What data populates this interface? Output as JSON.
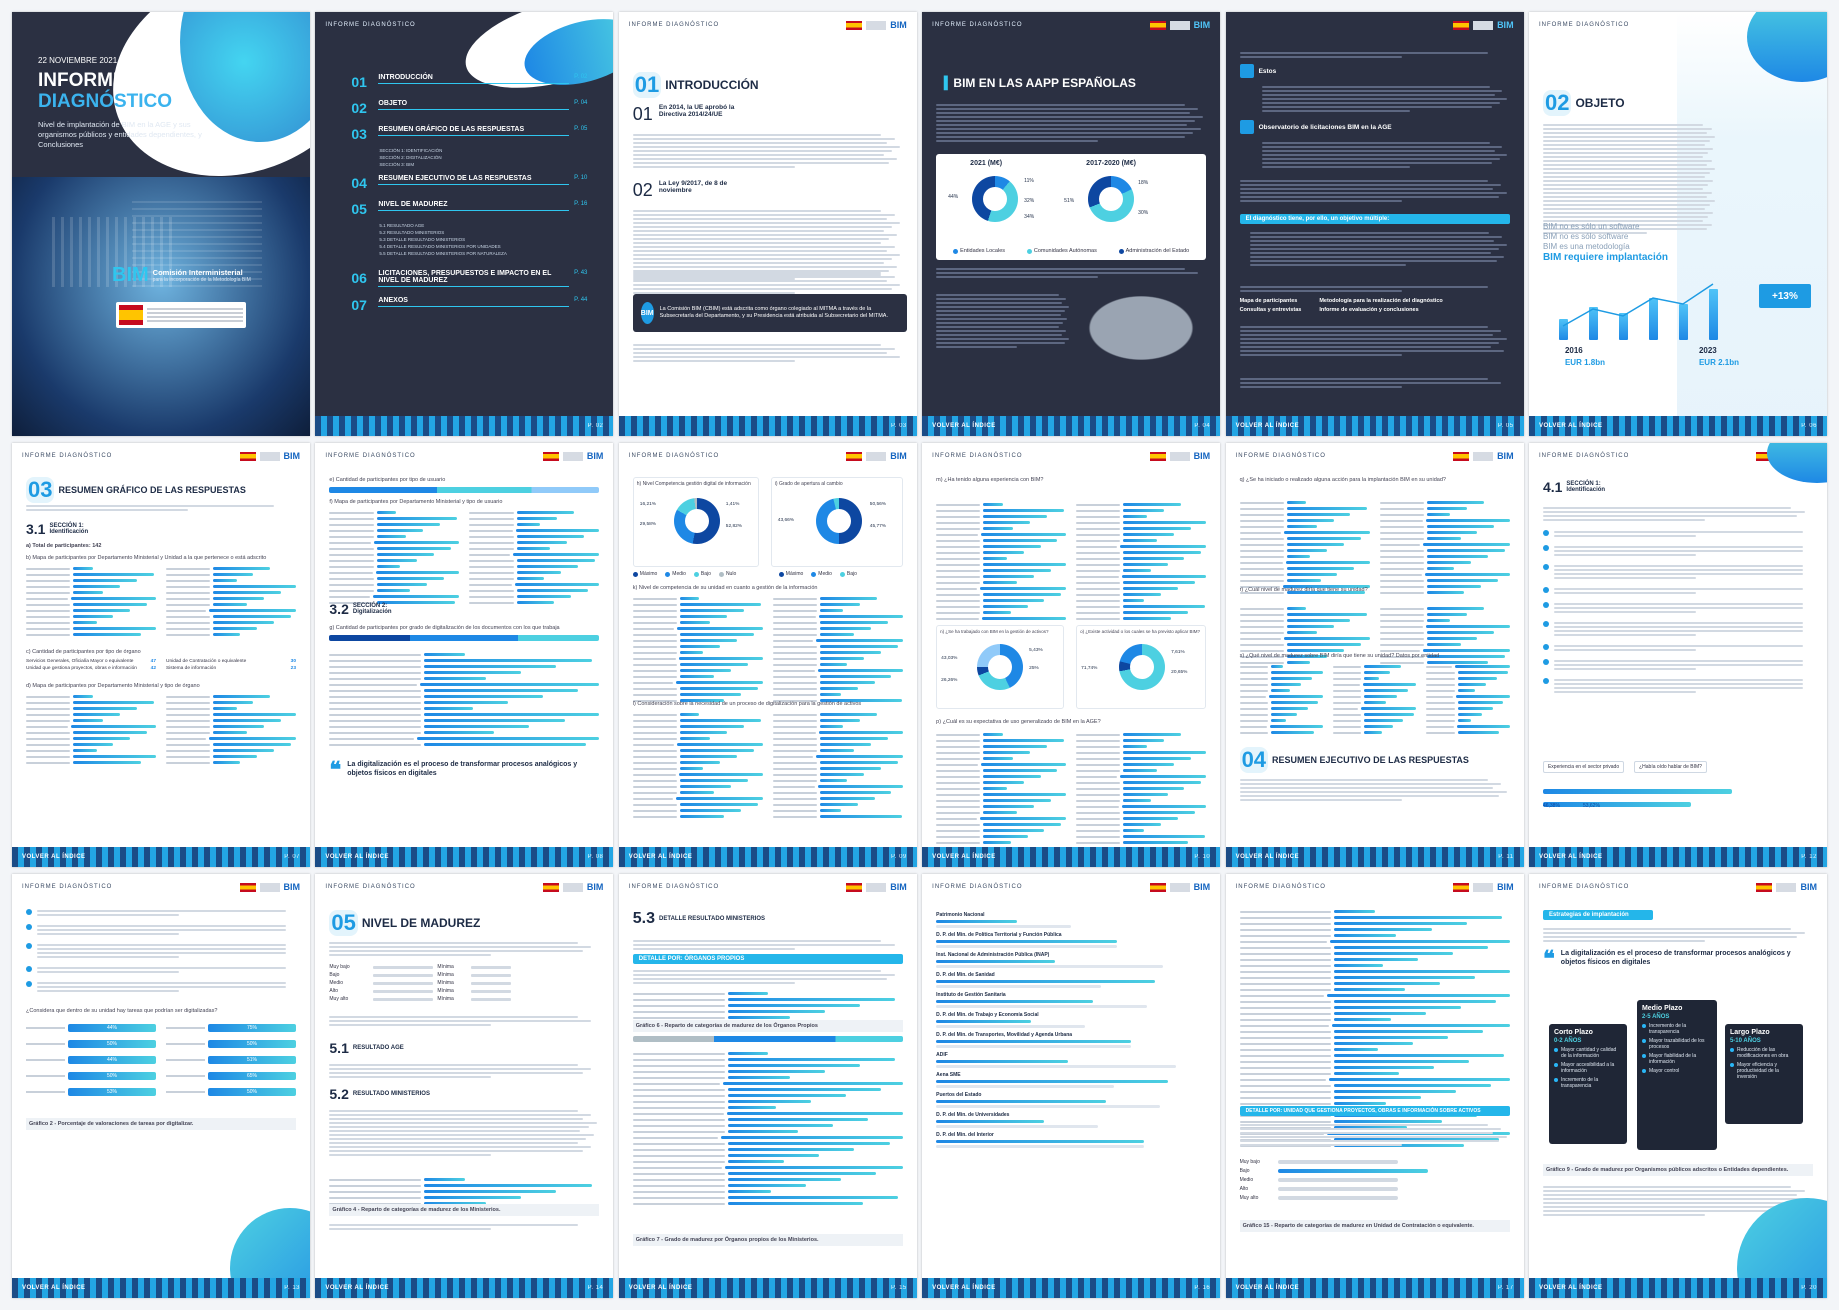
{
  "cover": {
    "date": "22 NOVIEMBRE 2021",
    "title_line1": "INFORME",
    "title_line2": "DIAGNÓSTICO",
    "subtitle": "Nivel de implantación de BIM en la AGE y sus organismos públicos y entidades dependientes, y Conclusiones",
    "brand": "BIM",
    "brand_sub1": "Comisión Interministerial",
    "brand_sub2": "para la incorporación de la Metodología BIM"
  },
  "header": {
    "label": "INFORME DIAGNÓSTICO",
    "logo": "BIM"
  },
  "footer": {
    "back": "VOLVER AL ÍNDICE"
  },
  "toc": {
    "items": [
      {
        "num": "01",
        "title": "INTRODUCCIÓN",
        "page": "P. 02"
      },
      {
        "num": "02",
        "title": "OBJETO",
        "page": "P. 04"
      },
      {
        "num": "03",
        "title": "RESUMEN GRÁFICO DE LAS RESPUESTAS",
        "page": "P. 05"
      },
      {
        "num": "04",
        "title": "RESUMEN EJECUTIVO DE LAS RESPUESTAS",
        "page": "P. 10"
      },
      {
        "num": "05",
        "title": "NIVEL DE MADUREZ",
        "page": "P. 16"
      },
      {
        "num": "06",
        "title": "LICITACIONES, PRESUPUESTOS E IMPACTO EN EL NIVEL DE MADUREZ",
        "page": "P. 43"
      },
      {
        "num": "07",
        "title": "ANEXOS",
        "page": "P. 44"
      }
    ],
    "sub3": [
      "SECCIÓN 1: IDENTIFICACIÓN",
      "SECCIÓN 2: DIGITALIZACIÓN",
      "SECCIÓN 3: BIM"
    ],
    "sub5": [
      "5.1 RESULTADO AGE",
      "5.2 RESULTADO MINISTERIOS",
      "5.3 DETALLE RESULTADO MINISTERIOS",
      "5.4 DETALLE RESULTADO MINISTERIOS POR UNIDADES",
      "5.5 DETALLE RESULTADO MINISTERIOS POR NATURALEZA"
    ]
  },
  "intro": {
    "num": "01",
    "title": "INTRODUCCIÓN",
    "p1_num": "01",
    "p1_head": "En 2014, la UE aprobó la Directiva 2014/24/UE",
    "p2_num": "02",
    "p2_head": "La Ley 9/2017, de 8 de noviembre",
    "callout": "La Comisión BIM (CBIM) está adscrita como órgano colegiado al MITMA a través de la Subsecretaría del Departamento, y su Presidencia está atribuida al Subsecretario del MITMA."
  },
  "aapp": {
    "title": "BIM EN LAS AAPP ESPAÑOLAS",
    "chart1": "2021 (M€)",
    "chart2": "2017-2020 (M€)",
    "c1_vals": [
      "11%",
      "44%",
      "32%",
      "34%"
    ],
    "c2_vals": [
      "18%",
      "51%",
      "30%"
    ],
    "legend": [
      "Entidades Locales",
      "Comunidades Autónomas",
      "Administración del Estado"
    ],
    "colors": [
      "#1e88e5",
      "#4dd0e1",
      "#0d47a1"
    ]
  },
  "cbim": {
    "h1": "Estos",
    "h2": "Observatorio de licitaciones BIM en la AGE",
    "band": "El diagnóstico tiene, por ello, un objetivo múltiple:",
    "list1": [
      "Mapa de participantes",
      "Consultas y entrevistas"
    ],
    "list2": [
      "Metodología para la realización del diagnóstico",
      "Informe de evaluación y conclusiones"
    ]
  },
  "objeto": {
    "num": "02",
    "title": "OBJETO",
    "tag1": "BIM no es sólo un software",
    "tag2": "BIM no es sólo software",
    "tag3": "BIM es una metodología",
    "tag4": "BIM requiere implantación",
    "growth": "+13%",
    "years": [
      "2016",
      "2023"
    ],
    "amounts": [
      "EUR 1.8bn",
      "EUR 2.1bn"
    ],
    "bar_levels": [
      0.35,
      0.55,
      0.45,
      0.7,
      0.6,
      0.85
    ]
  },
  "resumen": {
    "num": "03",
    "title": "RESUMEN GRÁFICO DE LAS RESPUESTAS",
    "sec_num": "3.1",
    "sec_title": "SECCIÓN 1: Identificación",
    "total": "a) Total de participantes: 142",
    "b": "b) Mapa de participantes por Departamento Ministerial y Unidad a la que pertenece o está adscrito",
    "c": "c) Cantidad de participantes por tipo de órgano",
    "d": "d) Mapa de participantes por Departamento Ministerial y tipo de órgano",
    "c_rows": [
      [
        "Servicios Generales, Oficialía Mayor o equivalente",
        "47"
      ],
      [
        "Unidad de Contratación o equivalente",
        "30"
      ],
      [
        "Unidad que gestiona proyectos, obras e información",
        "42"
      ],
      [
        "Sistema de información",
        "23"
      ]
    ]
  },
  "p07": {
    "e": "e) Cantidad de participantes por tipo de usuario",
    "f": "f) Mapa de participantes por Departamento Ministerial y tipo de usuario",
    "sec_num": "3.2",
    "sec_title": "SECCIÓN 2: Digitalización",
    "g": "g) Cantidad de participantes por grado de digitalización de los documentos con los que trabaja",
    "quote": "La digitalización es el proceso de transformar procesos analógicos y objetos físicos en digitales"
  },
  "p08": {
    "h": "h) Nivel Competencia gestión digital de información",
    "i": "i) Grado de apertura al cambio",
    "h_vals": [
      "16,21%",
      "29,58%",
      "1,41%",
      "52,82%"
    ],
    "i_vals": [
      "43,66%",
      "50,56%",
      "45,77%"
    ],
    "legend1": [
      "Máximo",
      "Medio",
      "Bajo",
      "Nulo"
    ],
    "legend2": [
      "Máximo",
      "Medio",
      "Bajo"
    ],
    "k": "k) Nivel de competencia de su unidad en cuanto a gestión de la información",
    "l": "l) Consideración sobre la necesidad de un proceso de digitalización para la gestión de activos"
  },
  "p09": {
    "m": "m) ¿Ha tenido alguna experiencia con BIM?",
    "n": "n) ¿Se ha trabajado con BIM en la gestión de activos?",
    "o": "o) ¿Existe actividad o los cuales se ha previsto aplicar BIM?",
    "n_vals": [
      "43,03%",
      "26,26%",
      "5,43%",
      "25%"
    ],
    "o_vals": [
      "71,74%",
      "7,61%",
      "20,65%"
    ],
    "p": "p) ¿Cuál es su expectativa de uso generalizado de BIM en la AGE?"
  },
  "p10": {
    "q": "q) ¿Se ha iniciado o realizado alguna acción para la implantación BIM en su unidad?",
    "r": "r) ¿Cuál nivel de madurez diría que tiene su unidad?",
    "s": "s) ¿Qué nivel de madurez sobre BIM diría que tiene su unidad? Datos por entidad",
    "num": "04",
    "title": "RESUMEN EJECUTIVO DE LAS RESPUESTAS"
  },
  "p11": {
    "num": "4.1",
    "sec_title": "SECCIÓN 1: Identificación",
    "exp_label": "Experiencia en el sector privado",
    "bim_label": "¿Había oído hablar de BIM?",
    "pcts": [
      "46,38%",
      "53,62%"
    ]
  },
  "p12": {
    "question": "¿Considera que dentro de su unidad hay tareas que podrían ser digitalizadas?",
    "graph": "Gráfico 2 - Porcentaje de valoraciones de tareas por digitalizar.",
    "pcts": [
      "44%",
      "50%",
      "44%",
      "50%",
      "53%",
      "75%",
      "50%",
      "51%",
      "65%",
      "50%"
    ]
  },
  "p13": {
    "num": "05",
    "title": "NIVEL DE MADUREZ",
    "levels": [
      [
        "Muy bajo",
        "Mínima"
      ],
      [
        "Bajo",
        "Mínima"
      ],
      [
        "Medio",
        "Mínima"
      ],
      [
        "Alto",
        "Mínima"
      ],
      [
        "Muy alto",
        "Mínima"
      ]
    ],
    "s1_num": "5.1",
    "s1": "RESULTADO AGE",
    "s2_num": "5.2",
    "s2": "RESULTADO MINISTERIOS",
    "graph": "Gráfico 4 - Reparto de categorías de madurez de los Ministerios."
  },
  "p14": {
    "num": "5.3",
    "title": "DETALLE RESULTADO MINISTERIOS",
    "band": "DETALLE POR: ÓRGANOS PROPIOS",
    "graph1": "Gráfico 6 - Reparto de categorías de madurez de los Órganos Propios",
    "graph2": "Gráfico 7 - Grado de madurez por Órganos propios de los Ministerios.",
    "levels": [
      "Muy bajo",
      "Bajo",
      "Medio",
      "Alto",
      "Muy alto"
    ]
  },
  "p15": {
    "rows": [
      "Patrimonio Nacional",
      "D. P. del Min. de Política Territorial y Función Pública",
      "Inst. Nacional de Administración Pública (INAP)",
      "D. P. del Min. de Sanidad",
      "Instituto de Gestión Sanitaria",
      "D. P. del Min. de Trabajo y Economía Social",
      "D. P. del Min. de Transportes, Movilidad y Agenda Urbana",
      "ADIF",
      "Aena SME",
      "Puertos del Estado",
      "D. P. del Min. de Universidades",
      "D. P. del Min. del Interior"
    ]
  },
  "p16": {
    "band": "DETALLE POR: UNIDAD QUE GESTIONA PROYECTOS, OBRAS E INFORMACIÓN SOBRE ACTIVOS",
    "levels": [
      "Muy bajo",
      "Bajo",
      "Medio",
      "Alto",
      "Muy alto"
    ],
    "graph": "Gráfico 15 - Reparto de categorías de madurez en Unidad de Contratación o equivalente."
  },
  "p17": {
    "band": "Estrategias de implantación",
    "quote": "La digitalización es el proceso de transformar procesos analógicos y objetos físicos en digitales",
    "cards": [
      {
        "title": "Corto Plazo",
        "sub": "0-2 AÑOS",
        "items": [
          "Mayor cantidad y calidad de la información",
          "Mayor accesibilidad a la información",
          "Incremento de la transparencia"
        ]
      },
      {
        "title": "Medio Plazo",
        "sub": "2-5 AÑOS",
        "items": [
          "Incremento de la transparencia",
          "Mayor trazabilidad de los procesos",
          "Mayor fiabilidad de la información",
          "Mayor control"
        ]
      },
      {
        "title": "Largo Plazo",
        "sub": "5-10 AÑOS",
        "items": [
          "Reducción de las modificaciones en obra",
          "Mayor eficiencia y productividad de la inversión"
        ]
      }
    ],
    "graph": "Gráfico 9 - Grado de madurez por Organismos públicos adscritos o Entidades dependientes."
  },
  "pages": [
    "P. 01",
    "P. 02",
    "P. 03",
    "P. 04",
    "P. 05",
    "P. 06",
    "P. 07",
    "P. 08",
    "P. 09",
    "P. 10",
    "P. 11",
    "P. 12",
    "P. 13",
    "P. 14",
    "P. 15",
    "P. 16",
    "P. 17",
    "P. 20"
  ]
}
